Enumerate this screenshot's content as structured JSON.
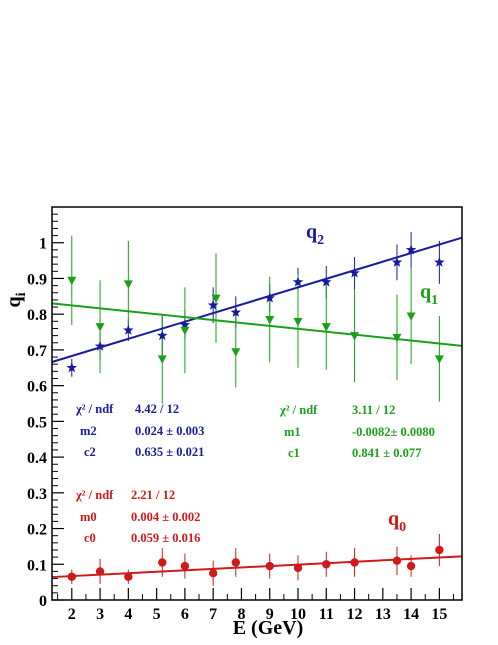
{
  "chart_data": {
    "type": "scatter",
    "xlabel": "E (GeV)",
    "ylabel": "q",
    "ylabel_sub": "i",
    "xlim": [
      1.3,
      15.8
    ],
    "ylim": [
      0,
      1.1
    ],
    "x_ticks": [
      2,
      3,
      4,
      5,
      6,
      7,
      8,
      9,
      10,
      11,
      12,
      13,
      14,
      15
    ],
    "y_ticks": [
      0,
      0.1,
      0.2,
      0.3,
      0.4,
      0.5,
      0.6,
      0.7,
      0.8,
      0.9,
      1
    ],
    "y_tick_labels": [
      "0",
      "0.1",
      "0.2",
      "0.3",
      "0.4",
      "0.5",
      "0.6",
      "0.7",
      "0.8",
      "0.9",
      "1"
    ],
    "series": [
      {
        "name": "q",
        "sub": "2",
        "color": "#1a1aa0",
        "marker": "star",
        "x": [
          2,
          3,
          4,
          5.2,
          6,
          7,
          7.8,
          9,
          10,
          11,
          12,
          13.5,
          14,
          15
        ],
        "y": [
          0.65,
          0.71,
          0.755,
          0.74,
          0.77,
          0.825,
          0.805,
          0.845,
          0.89,
          0.89,
          0.915,
          0.945,
          0.98,
          0.945
        ],
        "err": [
          0.025,
          0.04,
          0.03,
          0.06,
          0.04,
          0.05,
          0.045,
          0.04,
          0.04,
          0.045,
          0.045,
          0.05,
          0.05,
          0.06
        ],
        "fit": {
          "m": 0.024,
          "c": 0.635
        },
        "stats": {
          "chi_label": "χ² / ndf",
          "chi_value": "4.42 / 12",
          "m_label": "m2",
          "m_value": "0.024  ± 0.003",
          "c_label": "c2",
          "c_value": "0.635  ± 0.021"
        }
      },
      {
        "name": "q",
        "sub": "1",
        "color": "#1aa01a",
        "marker": "triangle-down",
        "x": [
          2,
          3,
          4,
          5.2,
          6,
          7.1,
          7.8,
          9,
          10,
          11,
          12,
          13.5,
          14,
          15
        ],
        "y": [
          0.895,
          0.765,
          0.885,
          0.675,
          0.755,
          0.845,
          0.695,
          0.785,
          0.78,
          0.765,
          0.74,
          0.735,
          0.795,
          0.675
        ],
        "err": [
          0.125,
          0.13,
          0.12,
          0.125,
          0.12,
          0.125,
          0.1,
          0.12,
          0.13,
          0.12,
          0.13,
          0.12,
          0.135,
          0.12
        ],
        "fit": {
          "m": -0.0082,
          "c": 0.841
        },
        "stats": {
          "chi_label": "χ² / ndf",
          "chi_value": "3.11 / 12",
          "m_label": "m1",
          "m_value": "-0.0082± 0.0080",
          "c_label": "c1",
          "c_value": "0.841  ± 0.077"
        }
      },
      {
        "name": "q",
        "sub": "0",
        "color": "#d01a1a",
        "marker": "circle",
        "x": [
          2,
          3,
          4,
          5.2,
          6,
          7,
          7.8,
          9,
          10,
          11,
          12,
          13.5,
          14,
          15
        ],
        "y": [
          0.065,
          0.08,
          0.065,
          0.105,
          0.095,
          0.075,
          0.105,
          0.095,
          0.09,
          0.1,
          0.105,
          0.11,
          0.095,
          0.14
        ],
        "err": [
          0.02,
          0.035,
          0.02,
          0.04,
          0.035,
          0.035,
          0.04,
          0.035,
          0.035,
          0.035,
          0.04,
          0.04,
          0.03,
          0.045
        ],
        "fit": {
          "m": 0.004,
          "c": 0.059
        },
        "stats": {
          "chi_label": "χ² / ndf",
          "chi_value": "2.21 / 12",
          "m_label": "m0",
          "m_value": "0.004  ± 0.002",
          "c_label": "c0",
          "c_value": "0.059  ± 0.016"
        }
      }
    ]
  }
}
